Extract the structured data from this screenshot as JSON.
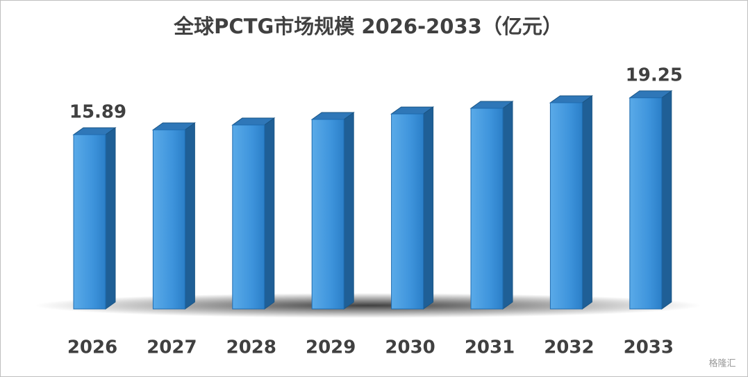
{
  "chart_data": {
    "type": "bar3d",
    "title": "全球PCTG市场规模 2026-2033（亿元）",
    "categories": [
      "2026",
      "2027",
      "2028",
      "2029",
      "2030",
      "2031",
      "2032",
      "2033"
    ],
    "values": [
      15.89,
      16.33,
      16.77,
      17.28,
      17.78,
      18.29,
      18.8,
      19.25
    ],
    "value_labels": [
      "15.89",
      null,
      null,
      null,
      null,
      null,
      null,
      "19.25"
    ],
    "color": "#3a8fd8",
    "ylim": [
      0,
      20
    ],
    "grid": false,
    "watermark": "格隆汇"
  }
}
